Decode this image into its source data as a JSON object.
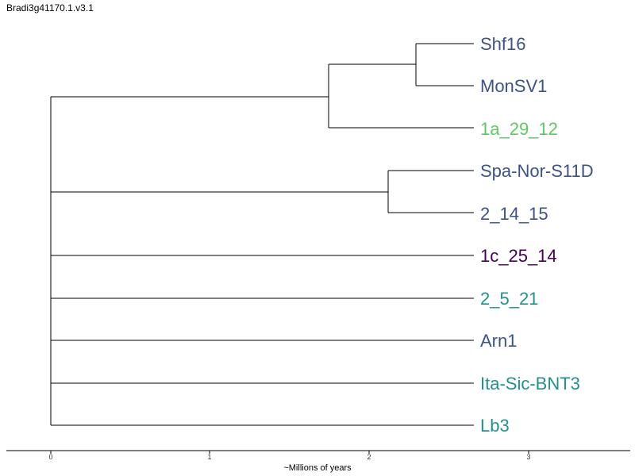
{
  "title": "Bradi3g41170.1.v3.1",
  "axis": {
    "label": "~Millions of years",
    "ticks": [
      "0",
      "1",
      "2",
      "3"
    ],
    "tick_values": [
      0,
      1,
      2,
      3
    ]
  },
  "tree": {
    "tips": [
      {
        "label": "Shf16",
        "color": "#3b528b"
      },
      {
        "label": "MonSV1",
        "color": "#3b528b"
      },
      {
        "label": "1a_29_12",
        "color": "#5ec962"
      },
      {
        "label": "Spa-Nor-S11D",
        "color": "#3b528b"
      },
      {
        "label": "2_14_15",
        "color": "#3b528b"
      },
      {
        "label": "1c_25_14",
        "color": "#440154"
      },
      {
        "label": "2_5_21",
        "color": "#21918c"
      },
      {
        "label": "Arn1",
        "color": "#3b528b"
      },
      {
        "label": "Ita-Sic-BNT3",
        "color": "#21918c"
      },
      {
        "label": "Lb3",
        "color": "#21918c"
      }
    ],
    "node_ages": {
      "clade_shf16_monsv1": 2.3,
      "clade_with_1a_29_12": 1.74,
      "clade_spa_2_14_15": 2.12,
      "root": 0
    }
  }
}
